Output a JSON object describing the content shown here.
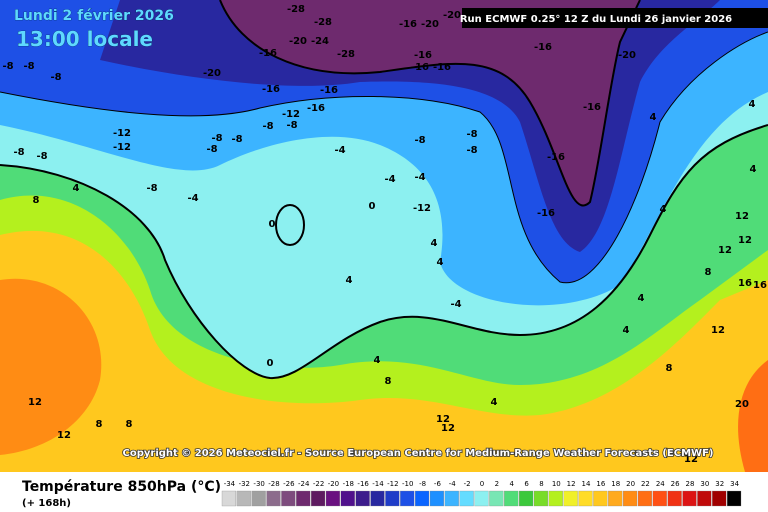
{
  "header": {
    "date": "Lundi 2 février 2026",
    "time": "13:00 locale",
    "run": "Run ECMWF 0.25° 12 Z du Lundi 26 janvier 2026"
  },
  "map": {
    "labels": [
      -28,
      -28,
      -20,
      -24,
      -28,
      -16,
      -20,
      -20,
      -16,
      -16,
      -16,
      -16,
      -20,
      -16,
      -20,
      -16,
      -16,
      -16,
      -12,
      -8,
      -8,
      -16,
      -16,
      -8,
      -8,
      -8,
      -12,
      -12,
      -8,
      -8,
      -8,
      -8,
      -8,
      -8,
      -8,
      -8,
      -8,
      -4,
      -4,
      -4,
      -12,
      -16,
      4,
      8,
      -4,
      0,
      0,
      4,
      4,
      -4,
      0,
      4,
      4,
      8,
      4,
      12,
      12,
      8,
      8,
      12,
      12,
      4,
      12,
      12,
      20,
      12,
      4,
      4,
      4,
      12,
      12,
      8,
      16,
      16,
      8,
      4,
      4
    ],
    "copyright": "Copyright © 2026 Meteociel.fr - Source European Centre for Medium-Range Weather Forecasts (ECMWF)"
  },
  "footer": {
    "title": "Température 850hPa (°C)",
    "lead_time": "(+ 168h)"
  },
  "legend": {
    "values": [
      -34,
      -32,
      -30,
      -28,
      -26,
      -24,
      -22,
      -20,
      -18,
      -16,
      -14,
      -12,
      -10,
      -8,
      -6,
      -4,
      -2,
      0,
      2,
      4,
      6,
      8,
      10,
      12,
      14,
      16,
      18,
      20,
      22,
      24,
      26,
      28,
      30,
      32,
      34
    ],
    "colors": [
      "#d8d8d8",
      "#b8b8b8",
      "#a0a0a0",
      "#8c6c8c",
      "#7d4b7d",
      "#6e2a6e",
      "#5e1a60",
      "#6a1080",
      "#50108c",
      "#3c1c8c",
      "#2828a0",
      "#1f3cc8",
      "#1e50e6",
      "#0a64ff",
      "#1e90ff",
      "#3cb4ff",
      "#64dcff",
      "#8cf0f0",
      "#78e6b4",
      "#50dc78",
      "#3cc83c",
      "#78dc28",
      "#b4f01e",
      "#f0f028",
      "#ffdc28",
      "#ffc81e",
      "#ffaa1e",
      "#ff8c14",
      "#ff6e14",
      "#ff5014",
      "#f03214",
      "#dc1414",
      "#c00a0a",
      "#a00000",
      "#000000"
    ]
  }
}
